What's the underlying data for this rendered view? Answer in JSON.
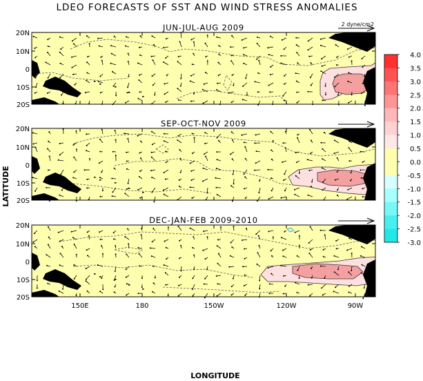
{
  "title": "LDEO FORECASTS OF SST AND WIND STRESS ANOMALIES",
  "xlabel": "LONGITUDE",
  "ylabel": "LATITUDE",
  "reference_vector_label": "2 dyne/cm2",
  "lat_ticks": [
    "20N",
    "10N",
    "0",
    "10S",
    "20S"
  ],
  "lon_ticks": [
    "150E",
    "180",
    "150W",
    "120W",
    "90W"
  ],
  "colorbar": {
    "ticks": [
      "4.0",
      "3.5",
      "3.0",
      "2.5",
      "2.0",
      "1.5",
      "1.0",
      "0.5",
      "0.0",
      "-0.5",
      "-1.0",
      "-1.5",
      "-2.0",
      "-2.5",
      "-3.0"
    ],
    "colors": [
      "#ff3030",
      "#ff5252",
      "#ff7474",
      "#ff9696",
      "#ffb8b8",
      "#ffd2d2",
      "#ffe8e8",
      "#ffffb0",
      "#ffffb0",
      "#d8ffff",
      "#a8ffff",
      "#78f7f7",
      "#48efef",
      "#20e8e8"
    ]
  },
  "colors": {
    "land": "#000000",
    "neutral": "#ffffb0",
    "warm_light": "#ffe0e0",
    "warm_mid": "#f4a0a0"
  },
  "panels": [
    {
      "title": "JUN-JUL-AUG 2009"
    },
    {
      "title": "SEP-OCT-NOV 2009"
    },
    {
      "title": "DEC-JAN-FEB 2009-2010"
    }
  ]
}
